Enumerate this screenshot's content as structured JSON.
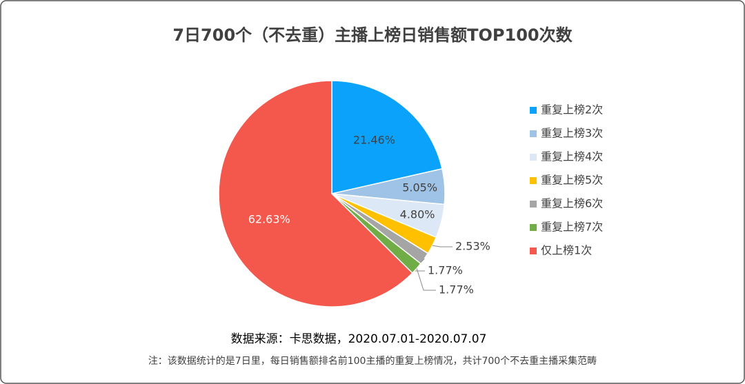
{
  "chart_data": {
    "type": "pie",
    "title": "7日700个（不去重）主播上榜日销售额TOP100次数",
    "categories": [
      "重复上榜2次",
      "重复上榜3次",
      "重复上榜4次",
      "重复上榜5次",
      "重复上榜6次",
      "重复上榜7次",
      "仅上榜1次"
    ],
    "values": [
      21.46,
      5.05,
      4.8,
      2.53,
      1.77,
      1.77,
      62.63
    ],
    "value_labels": [
      "21.46%",
      "5.05%",
      "4.80%",
      "2.53%",
      "1.77%",
      "1.77%",
      "62.63%"
    ],
    "colors": [
      "#0aa2fb",
      "#9fc3e7",
      "#dce8f5",
      "#ffc000",
      "#a5a5a5",
      "#70ad47",
      "#f4574c"
    ],
    "legend": "right",
    "source": "数据来源：卡思数据，2020.07.01-2020.07.07",
    "note": "注：该数据统计的是7日里，每日销售额排名前100主播的重复上榜情况，共计700个不去重主播采集范畴"
  }
}
